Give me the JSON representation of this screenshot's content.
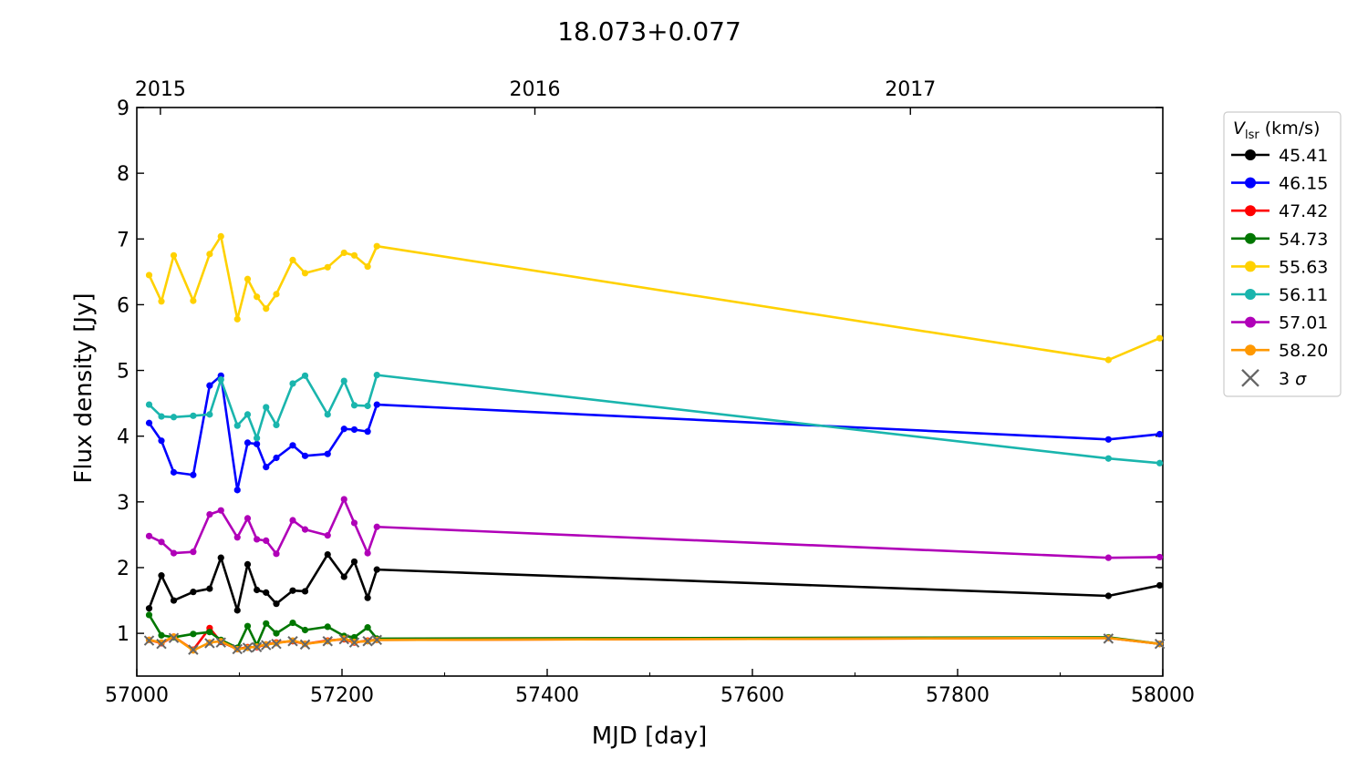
{
  "chart_data": {
    "type": "line",
    "title": "18.073+0.077",
    "xlabel": "MJD [day]",
    "ylabel": "Flux density [Jy]",
    "xlim": [
      57000,
      58000
    ],
    "ylim": [
      0.35,
      9
    ],
    "x_ticks": [
      57000,
      57200,
      57400,
      57600,
      57800,
      58000
    ],
    "y_ticks": [
      1,
      2,
      3,
      4,
      5,
      6,
      7,
      8,
      9
    ],
    "top_axis": {
      "ticks": [
        {
          "label": "2015",
          "mjd": 57023
        },
        {
          "label": "2016",
          "mjd": 57388
        },
        {
          "label": "2017",
          "mjd": 57754
        }
      ]
    },
    "legend": {
      "title_main": "V",
      "title_sub": "lsr",
      "title_unit": " (km/s)",
      "position": "outside-right-top",
      "sigma_label": "3 σ"
    },
    "x": [
      57012,
      57024,
      57036,
      57055,
      57071,
      57082,
      57098,
      57108,
      57117,
      57126,
      57136,
      57152,
      57164,
      57186,
      57202,
      57212,
      57225,
      57234,
      57947,
      57997
    ],
    "series": [
      {
        "name": "45.41",
        "color": "#000000",
        "values": [
          1.38,
          1.88,
          1.5,
          1.63,
          1.68,
          2.15,
          1.35,
          2.05,
          1.66,
          1.62,
          1.45,
          1.65,
          1.64,
          2.2,
          1.86,
          2.09,
          1.54,
          1.97,
          1.57,
          1.73
        ]
      },
      {
        "name": "46.15",
        "color": "#0000ff",
        "values": [
          4.2,
          3.93,
          3.45,
          3.41,
          4.77,
          4.92,
          3.18,
          3.9,
          3.88,
          3.53,
          3.67,
          3.86,
          3.7,
          3.73,
          4.11,
          4.1,
          4.07,
          4.48,
          3.95,
          4.03
        ]
      },
      {
        "name": "47.42",
        "color": "#ff0000",
        "values": [
          0.9,
          0.85,
          0.95,
          0.75,
          1.08,
          0.87,
          0.76,
          0.79,
          0.79,
          0.83,
          0.86,
          0.88,
          0.84,
          0.89,
          0.91,
          0.86,
          0.89,
          0.9,
          0.93,
          0.84
        ]
      },
      {
        "name": "54.73",
        "color": "#007700",
        "values": [
          1.28,
          0.97,
          0.94,
          0.99,
          1.02,
          0.9,
          0.78,
          1.11,
          0.82,
          1.15,
          1.0,
          1.16,
          1.05,
          1.1,
          0.96,
          0.94,
          1.09,
          0.92,
          0.94,
          0.84
        ]
      },
      {
        "name": "55.63",
        "color": "#ffd100",
        "values": [
          6.45,
          6.05,
          6.75,
          6.06,
          6.77,
          7.04,
          5.78,
          6.39,
          6.12,
          5.94,
          6.16,
          6.68,
          6.48,
          6.57,
          6.79,
          6.75,
          6.58,
          6.89,
          5.16,
          5.49
        ]
      },
      {
        "name": "56.11",
        "color": "#1ab5ad",
        "values": [
          4.48,
          4.3,
          4.29,
          4.31,
          4.33,
          4.86,
          4.16,
          4.33,
          3.97,
          4.44,
          4.17,
          4.8,
          4.92,
          4.33,
          4.84,
          4.47,
          4.46,
          4.93,
          3.66,
          3.59
        ]
      },
      {
        "name": "57.01",
        "color": "#b000b8",
        "values": [
          2.48,
          2.39,
          2.22,
          2.24,
          2.81,
          2.87,
          2.46,
          2.75,
          2.43,
          2.41,
          2.21,
          2.72,
          2.58,
          2.49,
          3.04,
          2.68,
          2.22,
          2.62,
          2.15,
          2.16
        ]
      },
      {
        "name": "58.20",
        "color": "#ff9800",
        "values": [
          0.9,
          0.86,
          0.95,
          0.74,
          0.86,
          0.88,
          0.76,
          0.78,
          0.8,
          0.83,
          0.85,
          0.89,
          0.84,
          0.88,
          0.92,
          0.87,
          0.88,
          0.9,
          0.93,
          0.84
        ]
      }
    ],
    "sigma3": {
      "name": "3 σ",
      "color": "#666666",
      "x": [
        57012,
        57024,
        57036,
        57055,
        57071,
        57082,
        57098,
        57108,
        57117,
        57126,
        57136,
        57152,
        57164,
        57186,
        57202,
        57212,
        57225,
        57234,
        57947,
        57997
      ],
      "values": [
        0.89,
        0.84,
        0.93,
        0.75,
        0.85,
        0.86,
        0.76,
        0.78,
        0.79,
        0.82,
        0.84,
        0.88,
        0.83,
        0.88,
        0.91,
        0.86,
        0.88,
        0.9,
        0.92,
        0.84
      ]
    }
  }
}
